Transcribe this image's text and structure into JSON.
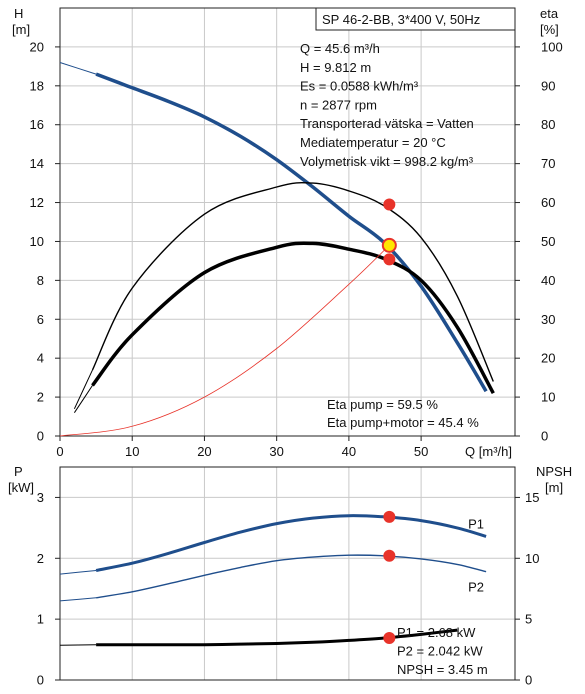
{
  "chart_data": [
    {
      "type": "line",
      "title": "SP 46-2-BB, 3*400 V, 50Hz",
      "xlabel": "Q [m³/h]",
      "ylabel_left": [
        "H",
        "[m]"
      ],
      "ylabel_right": [
        "eta",
        "[%]"
      ],
      "xlim": [
        0,
        63
      ],
      "ylim_left": [
        0,
        22
      ],
      "ylim_right": [
        0,
        110
      ],
      "x_ticks": [
        0,
        10,
        20,
        30,
        40,
        50
      ],
      "y_ticks_left": [
        0,
        2,
        4,
        6,
        8,
        10,
        12,
        14,
        16,
        18,
        20
      ],
      "y_ticks_right": [
        0,
        10,
        20,
        30,
        40,
        50,
        60,
        70,
        80,
        90,
        100
      ],
      "grid": true,
      "series": [
        {
          "id": "H",
          "axis": "left",
          "color": "#1f4e8c",
          "width": 3.5,
          "x": [
            0,
            5,
            10,
            15,
            20,
            25,
            30,
            35,
            40,
            45,
            50,
            55,
            59
          ],
          "y": [
            19.2,
            18.6,
            17.9,
            17.2,
            16.4,
            15.4,
            14.2,
            12.8,
            11.3,
            9.9,
            7.7,
            4.8,
            2.3
          ],
          "ext_x": [
            0,
            5
          ],
          "ext_y": [
            19.2,
            18.6
          ]
        },
        {
          "id": "eta-pump",
          "axis": "right",
          "color": "#000000",
          "width": 1.4,
          "x": [
            2,
            4.5,
            10,
            20,
            30,
            35,
            40,
            45,
            50,
            55,
            60
          ],
          "y": [
            7,
            17,
            38,
            57,
            64,
            65,
            63,
            59,
            51,
            36,
            14
          ]
        },
        {
          "id": "eta-pump-motor",
          "axis": "right",
          "color": "#000000",
          "width": 3.5,
          "x": [
            2,
            4.5,
            10,
            20,
            30,
            35,
            40,
            45,
            50,
            55,
            60
          ],
          "y": [
            6,
            13,
            26,
            42,
            48.5,
            49.5,
            48,
            45.5,
            40,
            28,
            11
          ]
        },
        {
          "id": "H-operating",
          "axis": "left",
          "color": "#e8332a",
          "width": 0.8,
          "x": [
            0,
            10,
            20,
            30,
            40,
            45.6
          ],
          "y": [
            0,
            0.5,
            2.0,
            4.5,
            7.8,
            9.8
          ]
        }
      ],
      "points": [
        {
          "id": "duty-H",
          "x": 45.6,
          "y": 9.8,
          "axis": "left",
          "color": "#ffe600",
          "stroke": "#e8332a"
        },
        {
          "id": "duty-eta-pump",
          "x": 45.6,
          "y": 59.5,
          "axis": "right",
          "color": "#e8332a"
        },
        {
          "id": "duty-eta-pump-motor",
          "x": 45.6,
          "y": 45.4,
          "axis": "right",
          "color": "#e8332a"
        }
      ],
      "info_lines": [
        "Q = 45.6 m³/h",
        "H = 9.812 m",
        "Es = 0.0588 kWh/m³",
        "n = 2877 rpm",
        "Transporterad vätska = Vatten",
        "Mediatemperatur = 20 °C",
        "Volymetrisk vikt = 998.2 kg/m³"
      ],
      "eta_lines": [
        "Eta pump = 59.5 %",
        "Eta pump+motor = 45.4 %"
      ]
    },
    {
      "type": "line",
      "ylabel_left": [
        "P",
        "[kW]"
      ],
      "ylabel_right": [
        "NPSH",
        "[m]"
      ],
      "xlim": [
        0,
        63
      ],
      "ylim_left": [
        0,
        3.5
      ],
      "ylim_right": [
        0,
        17.5
      ],
      "y_ticks_left": [
        0,
        1,
        2,
        3
      ],
      "y_ticks_right": [
        0,
        5,
        10,
        15
      ],
      "grid": true,
      "series": [
        {
          "id": "P1",
          "name": "P1",
          "axis": "left",
          "color": "#1f4e8c",
          "width": 3,
          "x": [
            0,
            5,
            10,
            15,
            20,
            25,
            30,
            35,
            40,
            45,
            50,
            55,
            59
          ],
          "y": [
            1.74,
            1.8,
            1.92,
            2.08,
            2.26,
            2.43,
            2.57,
            2.66,
            2.7,
            2.68,
            2.62,
            2.5,
            2.36
          ]
        },
        {
          "id": "P2",
          "name": "P2",
          "axis": "left",
          "color": "#1f4e8c",
          "width": 1.4,
          "x": [
            0,
            5,
            10,
            15,
            20,
            25,
            30,
            35,
            40,
            45,
            50,
            55,
            59
          ],
          "y": [
            1.3,
            1.35,
            1.45,
            1.58,
            1.72,
            1.85,
            1.96,
            2.02,
            2.05,
            2.04,
            1.99,
            1.9,
            1.78
          ]
        },
        {
          "id": "NPSH",
          "axis": "right",
          "color": "#000000",
          "width": 3,
          "x": [
            0,
            5,
            10,
            15,
            20,
            25,
            30,
            35,
            40,
            45,
            50,
            55
          ],
          "y": [
            2.85,
            2.9,
            2.9,
            2.9,
            2.9,
            2.95,
            3.0,
            3.1,
            3.25,
            3.45,
            3.75,
            4.1
          ]
        }
      ],
      "points": [
        {
          "id": "duty-P1",
          "x": 45.6,
          "y": 2.68,
          "axis": "left",
          "color": "#e8332a"
        },
        {
          "id": "duty-P2",
          "x": 45.6,
          "y": 2.042,
          "axis": "left",
          "color": "#e8332a"
        },
        {
          "id": "duty-NPSH",
          "x": 45.6,
          "y": 3.45,
          "axis": "right",
          "color": "#e8332a"
        }
      ],
      "info_lines": [
        "P1 = 2.68 kW",
        "P2 = 2.042 kW",
        "NPSH = 3.45 m"
      ]
    }
  ]
}
